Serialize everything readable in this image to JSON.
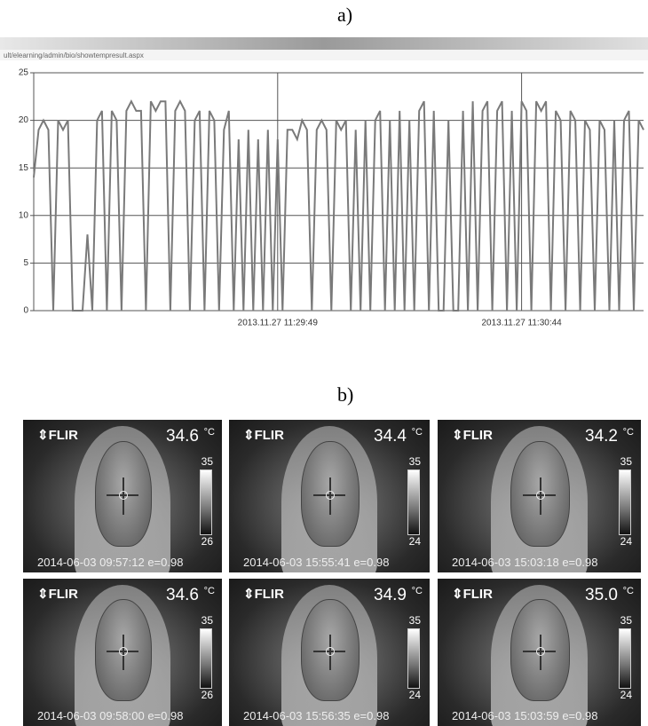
{
  "labels": {
    "a": "a)",
    "b": "b)"
  },
  "url": "ult/elearning/admin/bio/showtempresult.aspx",
  "chart_data": {
    "type": "line",
    "color": "#7a7a7a",
    "grid": true,
    "ylim": [
      0,
      25
    ],
    "yticks": [
      0,
      5,
      10,
      15,
      20,
      25
    ],
    "categories": [
      null,
      null,
      null,
      null,
      null,
      null,
      null,
      null,
      null,
      null,
      null,
      null,
      null,
      null,
      null,
      null,
      null,
      null,
      null,
      null,
      null,
      null,
      null,
      null,
      null,
      null,
      null,
      null,
      null,
      null,
      null,
      null,
      null,
      null,
      null,
      null,
      null,
      null,
      null,
      null,
      null,
      null,
      null,
      null,
      null,
      null,
      null,
      null,
      null,
      null,
      "2013.11.27 11:29:49",
      null,
      null,
      null,
      null,
      null,
      null,
      null,
      null,
      null,
      null,
      null,
      null,
      null,
      null,
      null,
      null,
      null,
      null,
      null,
      null,
      null,
      null,
      null,
      null,
      null,
      null,
      null,
      null,
      null,
      null,
      null,
      null,
      null,
      null,
      null,
      null,
      null,
      null,
      null,
      null,
      null,
      null,
      null,
      null,
      null,
      null,
      null,
      null,
      null,
      "2013.11.27 11:30:44",
      null,
      null,
      null,
      null,
      null,
      null,
      null,
      null,
      null,
      null,
      null,
      null,
      null,
      null,
      null,
      null,
      null,
      null,
      null,
      null,
      null,
      null,
      null,
      null,
      null
    ],
    "values": [
      14,
      19,
      20,
      19,
      0,
      20,
      19,
      20,
      0,
      0,
      0,
      8,
      0,
      20,
      21,
      0,
      21,
      20,
      0,
      21,
      22,
      21,
      21,
      0,
      22,
      21,
      22,
      22,
      0,
      21,
      22,
      21,
      0,
      20,
      21,
      0,
      21,
      20,
      0,
      19,
      21,
      0,
      18,
      0,
      19,
      0,
      18,
      0,
      19,
      0,
      18,
      0,
      19,
      19,
      18,
      20,
      19,
      0,
      19,
      20,
      19,
      0,
      20,
      19,
      20,
      0,
      19,
      0,
      20,
      0,
      20,
      21,
      0,
      20,
      0,
      21,
      0,
      20,
      0,
      21,
      22,
      0,
      21,
      0,
      0,
      20,
      0,
      0,
      21,
      0,
      22,
      0,
      21,
      22,
      0,
      21,
      22,
      0,
      21,
      0,
      22,
      21,
      0,
      22,
      21,
      22,
      0,
      21,
      20,
      0,
      21,
      20,
      0,
      20,
      19,
      0,
      20,
      19,
      0,
      20,
      0,
      20,
      21,
      0,
      20,
      19
    ]
  },
  "thermal_images": [
    {
      "brand": "FLIR",
      "temperature": "34.6",
      "unit": "°C",
      "scale_max": "35",
      "scale_min": "26",
      "timestamp": "2014-06-03 09:57:12 e=0.98"
    },
    {
      "brand": "FLIR",
      "temperature": "34.4",
      "unit": "°C",
      "scale_max": "35",
      "scale_min": "24",
      "timestamp": "2014-06-03 15:55:41 e=0.98"
    },
    {
      "brand": "FLIR",
      "temperature": "34.2",
      "unit": "°C",
      "scale_max": "35",
      "scale_min": "24",
      "timestamp": "2014-06-03 15:03:18 e=0.98"
    },
    {
      "brand": "FLIR",
      "temperature": "34.6",
      "unit": "°C",
      "scale_max": "35",
      "scale_min": "26",
      "timestamp": "2014-06-03 09:58:00 e=0.98"
    },
    {
      "brand": "FLIR",
      "temperature": "34.9",
      "unit": "°C",
      "scale_max": "35",
      "scale_min": "24",
      "timestamp": "2014-06-03 15:56:35 e=0.98"
    },
    {
      "brand": "FLIR",
      "temperature": "35.0",
      "unit": "°C",
      "scale_max": "35",
      "scale_min": "24",
      "timestamp": "2014-06-03 15:03:59 e=0.98"
    }
  ]
}
